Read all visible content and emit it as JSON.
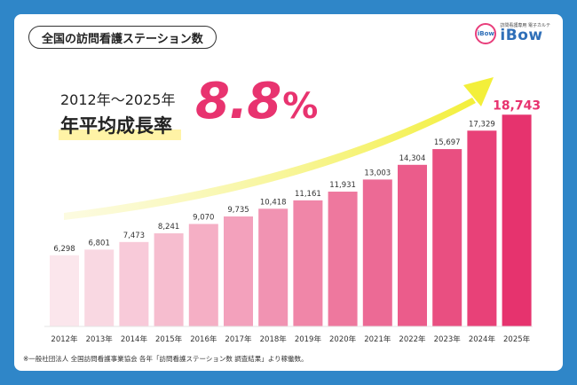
{
  "title": "全国の訪問看護ステーション数",
  "logo": {
    "sub": "訪問看護専用 電子カルテ",
    "mark": "iBow",
    "name": "iBow"
  },
  "headline": {
    "range": "2012年〜2025年",
    "label": "年平均成長率",
    "value": "8.8",
    "unit": "%"
  },
  "footnote": "※一般社団法人 全国訪問看護事業協会 各年「訪問看護ステーション数 調査結果」より稼働数。",
  "colors": {
    "highlight": "#e8336f",
    "arrow": "#f3ef3a",
    "bar_light": "#fbe6ec",
    "bar_dark": "#e6336e"
  },
  "chart_data": {
    "type": "bar",
    "categories": [
      "2012年",
      "2013年",
      "2014年",
      "2015年",
      "2016年",
      "2017年",
      "2018年",
      "2019年",
      "2020年",
      "2021年",
      "2022年",
      "2023年",
      "2024年",
      "2025年"
    ],
    "values": [
      6298,
      6801,
      7473,
      8241,
      9070,
      9735,
      10418,
      11161,
      11931,
      13003,
      14304,
      15697,
      17329,
      18743
    ],
    "value_labels": [
      "6,298",
      "6,801",
      "7,473",
      "8,241",
      "9,070",
      "9,735",
      "10,418",
      "11,161",
      "11,931",
      "13,003",
      "14,304",
      "15,697",
      "17,329",
      "18,743"
    ],
    "highlight_last": true
  }
}
